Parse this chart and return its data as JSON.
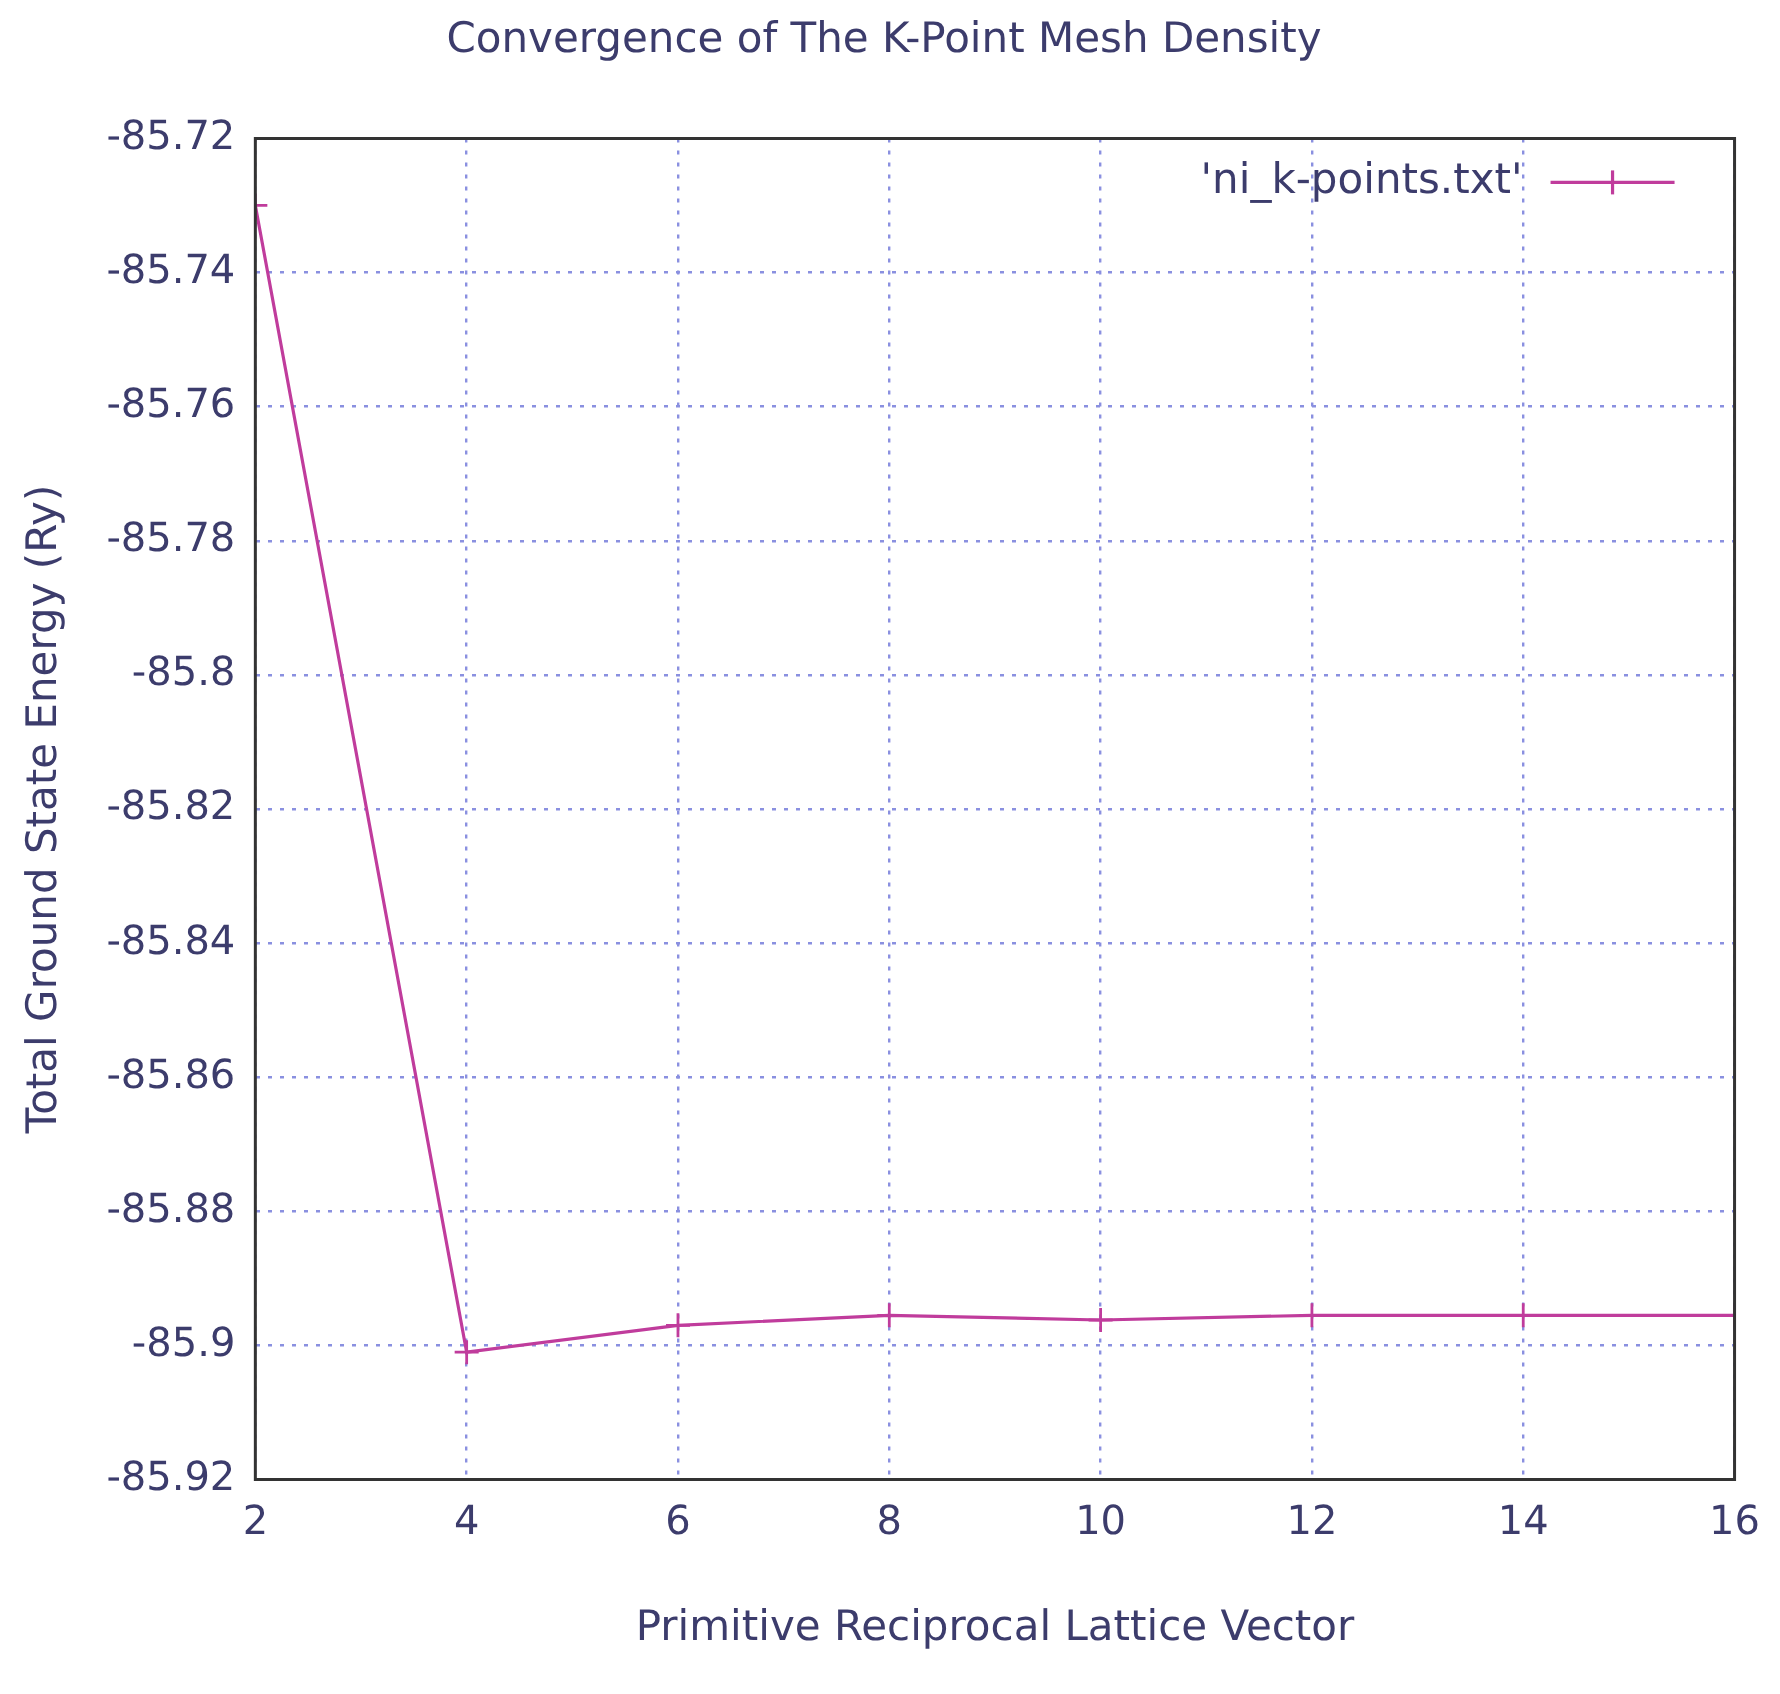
{
  "chart_data": {
    "type": "line",
    "title": "Convergence of The K-Point Mesh Density",
    "xlabel": "Primitive Reciprocal Lattice Vector",
    "ylabel": "Total Ground State Energy (Ry)",
    "x": [
      2,
      4,
      6,
      8,
      10,
      12,
      14,
      16
    ],
    "series": [
      {
        "name": "'ni_k-points.txt'",
        "color": "#c03c9c",
        "values": [
          -85.73,
          -85.901,
          -85.897,
          -85.8955,
          -85.8962,
          -85.8955,
          -85.8955,
          -85.8955
        ]
      }
    ],
    "xlim": [
      2,
      16
    ],
    "xticks": [
      2,
      4,
      6,
      8,
      10,
      12,
      14,
      16
    ],
    "ylim": [
      -85.92,
      -85.72
    ],
    "yticks": [
      -85.92,
      -85.9,
      -85.88,
      -85.86,
      -85.84,
      -85.82,
      -85.8,
      -85.78,
      -85.76,
      -85.74,
      -85.72
    ],
    "grid": true,
    "legend": "top right",
    "marker": "cross",
    "line_style": "solid"
  }
}
